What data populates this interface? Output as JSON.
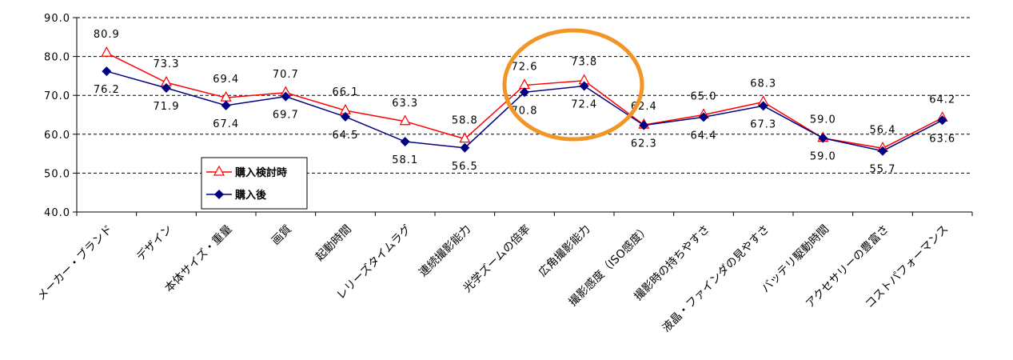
{
  "chart_data": {
    "type": "line",
    "categories": [
      "メーカー・ブランド",
      "デザイン",
      "本体サイズ・重量",
      "画質",
      "起動時間",
      "レリーズタイムラグ",
      "連続撮影能力",
      "光学ズームの倍率",
      "広角撮影能力",
      "撮影感度（ISO感度）",
      "撮影時の持ちやすさ",
      "液晶・ファインダの見やすさ",
      "バッテリ駆動時間",
      "アクセサリーの豊富さ",
      "コストパフォーマンス"
    ],
    "series": [
      {
        "name": "購入検討時",
        "values": [
          80.9,
          73.3,
          69.4,
          70.7,
          66.1,
          63.3,
          58.8,
          72.6,
          73.8,
          62.4,
          65.0,
          68.3,
          59.0,
          56.4,
          64.2
        ],
        "labels": [
          "80.9",
          "73.3",
          "69.4",
          "70.7",
          "66.1",
          "63.3",
          "58.8",
          "72.6",
          "73.8",
          "62.4",
          "65.0",
          "68.3",
          "59.0",
          "56.4",
          "64.2"
        ]
      },
      {
        "name": "購入後",
        "values": [
          76.2,
          71.9,
          67.4,
          69.7,
          64.5,
          58.1,
          56.5,
          70.8,
          72.4,
          62.3,
          64.4,
          67.3,
          59.0,
          55.7,
          63.6
        ],
        "labels": [
          "76.2",
          "71.9",
          "67.4",
          "69.7",
          "64.5",
          "58.1",
          "56.5",
          "70.8",
          "72.4",
          "62.3",
          "64.4",
          "67.3",
          "59.0",
          "55.7",
          "63.6"
        ]
      }
    ],
    "ylim": [
      40,
      90
    ],
    "yticks": [
      "40.0",
      "50.0",
      "60.0",
      "70.0",
      "80.0",
      "90.0"
    ],
    "grid": true,
    "legend_position": "bottom-left",
    "colors": {
      "series1": "#ff0000",
      "series2": "#000080",
      "highlight": "#f39427"
    }
  }
}
